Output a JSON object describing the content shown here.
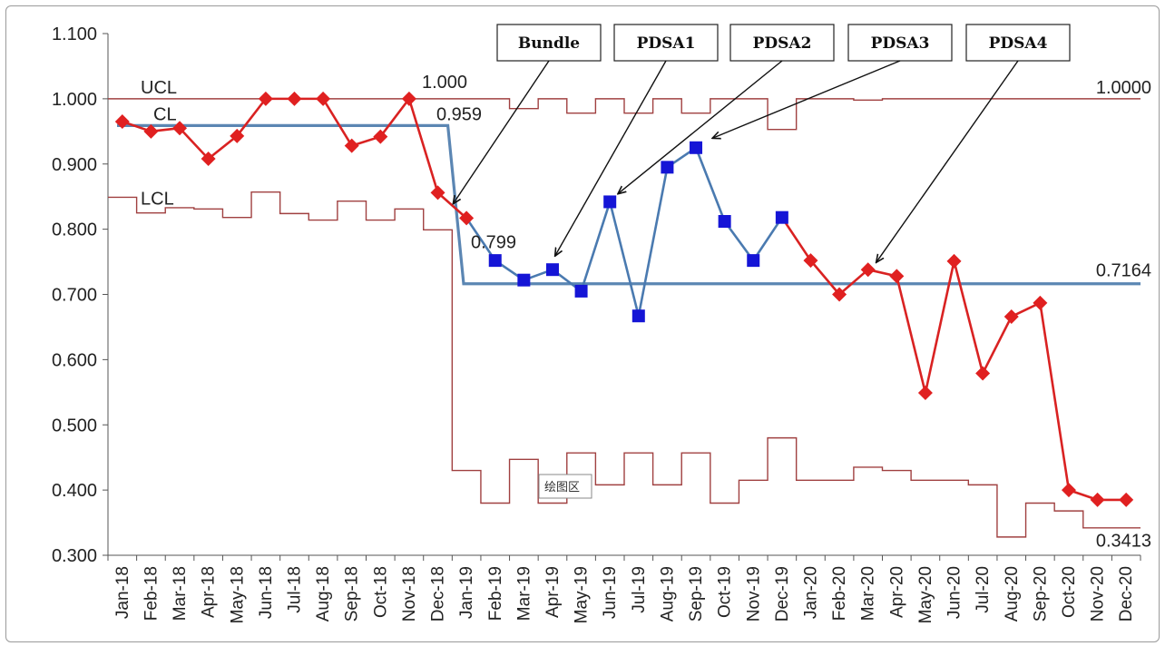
{
  "chart_data": {
    "type": "line",
    "title": "",
    "xlabel": "",
    "ylabel": "",
    "ylim": [
      0.3,
      1.1
    ],
    "yticks": [
      "0.300",
      "0.400",
      "0.500",
      "0.600",
      "0.700",
      "0.800",
      "0.900",
      "1.000",
      "1.100"
    ],
    "categories": [
      "Jan-18",
      "Feb-18",
      "Mar-18",
      "Apr-18",
      "May-18",
      "Jun-18",
      "Jul-18",
      "Aug-18",
      "Sep-18",
      "Oct-18",
      "Nov-18",
      "Dec-18",
      "Jan-19",
      "Feb-19",
      "Mar-19",
      "Apr-19",
      "May-19",
      "Jun-19",
      "Jul-19",
      "Aug-19",
      "Sep-19",
      "Oct-19",
      "Nov-19",
      "Dec-19",
      "Jan-20",
      "Feb-20",
      "Mar-20",
      "Apr-20",
      "May-20",
      "Jun-20",
      "Jul-20",
      "Aug-20",
      "Sep-20",
      "Oct-20",
      "Nov-20",
      "Dec-20"
    ],
    "series": [
      {
        "values": [
          0.965,
          0.95,
          0.955,
          0.908,
          0.943,
          1.0,
          1.0,
          1.0,
          0.928,
          0.942,
          1.0,
          0.856,
          0.817,
          0.752,
          0.722,
          0.738,
          0.705,
          0.842,
          0.667,
          0.895,
          0.925,
          0.812,
          0.752,
          0.818,
          0.752,
          0.7,
          0.738,
          0.728,
          0.549,
          0.751,
          0.579,
          0.666,
          0.687,
          0.4,
          0.385,
          0.385
        ],
        "red_indices": [
          0,
          1,
          2,
          3,
          4,
          5,
          6,
          7,
          8,
          9,
          10,
          11,
          12,
          24,
          25,
          26,
          27,
          28,
          29,
          30,
          31,
          32,
          33,
          34,
          35
        ],
        "blue_indices": [
          13,
          14,
          15,
          16,
          17,
          18,
          19,
          20,
          21,
          22,
          23
        ],
        "colors": {
          "red": "#e02020",
          "red_line": "#d92222",
          "blue": "#1515d6",
          "blue_line": "#4a7ab0"
        }
      }
    ],
    "center_line": {
      "segment1": 0.959,
      "segment2": 0.7164,
      "break_after": "Dec-18",
      "color": "#5b86b3"
    },
    "ucl": {
      "values": [
        1.0,
        1.0,
        1.0,
        1.0,
        1.0,
        1.0,
        1.0,
        1.0,
        1.0,
        1.0,
        1.0,
        1.0,
        1.0,
        1.0,
        0.985,
        1.0,
        0.978,
        1.0,
        0.978,
        1.0,
        0.978,
        1.0,
        1.0,
        0.953,
        1.0,
        1.0,
        0.998,
        1.0,
        1.0,
        1.0,
        1.0,
        1.0,
        1.0,
        1.0,
        1.0,
        1.0
      ],
      "color": "#a04040"
    },
    "lcl": {
      "values": [
        0.849,
        0.825,
        0.833,
        0.831,
        0.818,
        0.857,
        0.824,
        0.814,
        0.843,
        0.814,
        0.831,
        0.799,
        0.43,
        0.38,
        0.447,
        0.38,
        0.457,
        0.408,
        0.457,
        0.408,
        0.457,
        0.38,
        0.415,
        0.48,
        0.415,
        0.415,
        0.435,
        0.43,
        0.415,
        0.415,
        0.408,
        0.328,
        0.38,
        0.368,
        0.342,
        0.342
      ],
      "color": "#a04040"
    },
    "labels": {
      "ucl": "UCL",
      "cl": "CL",
      "lcl": "LCL",
      "val_1000": "1.000",
      "val_0959": "0.959",
      "val_0799": "0.799",
      "val_10000": "1.0000",
      "val_07164": "0.7164",
      "val_03413": "0.3413",
      "tooltip": "绘图区"
    },
    "annotations": [
      {
        "text": "Bundle",
        "target_index": 11.55,
        "target_value": 0.84
      },
      {
        "text": "PDSA1",
        "target_index": 15.1,
        "target_value": 0.76
      },
      {
        "text": "PDSA2",
        "target_index": 17.3,
        "target_value": 0.855
      },
      {
        "text": "PDSA3",
        "target_index": 20.6,
        "target_value": 0.94
      },
      {
        "text": "PDSA4",
        "target_index": 26.3,
        "target_value": 0.75
      }
    ],
    "legend": "none",
    "grid": false
  }
}
